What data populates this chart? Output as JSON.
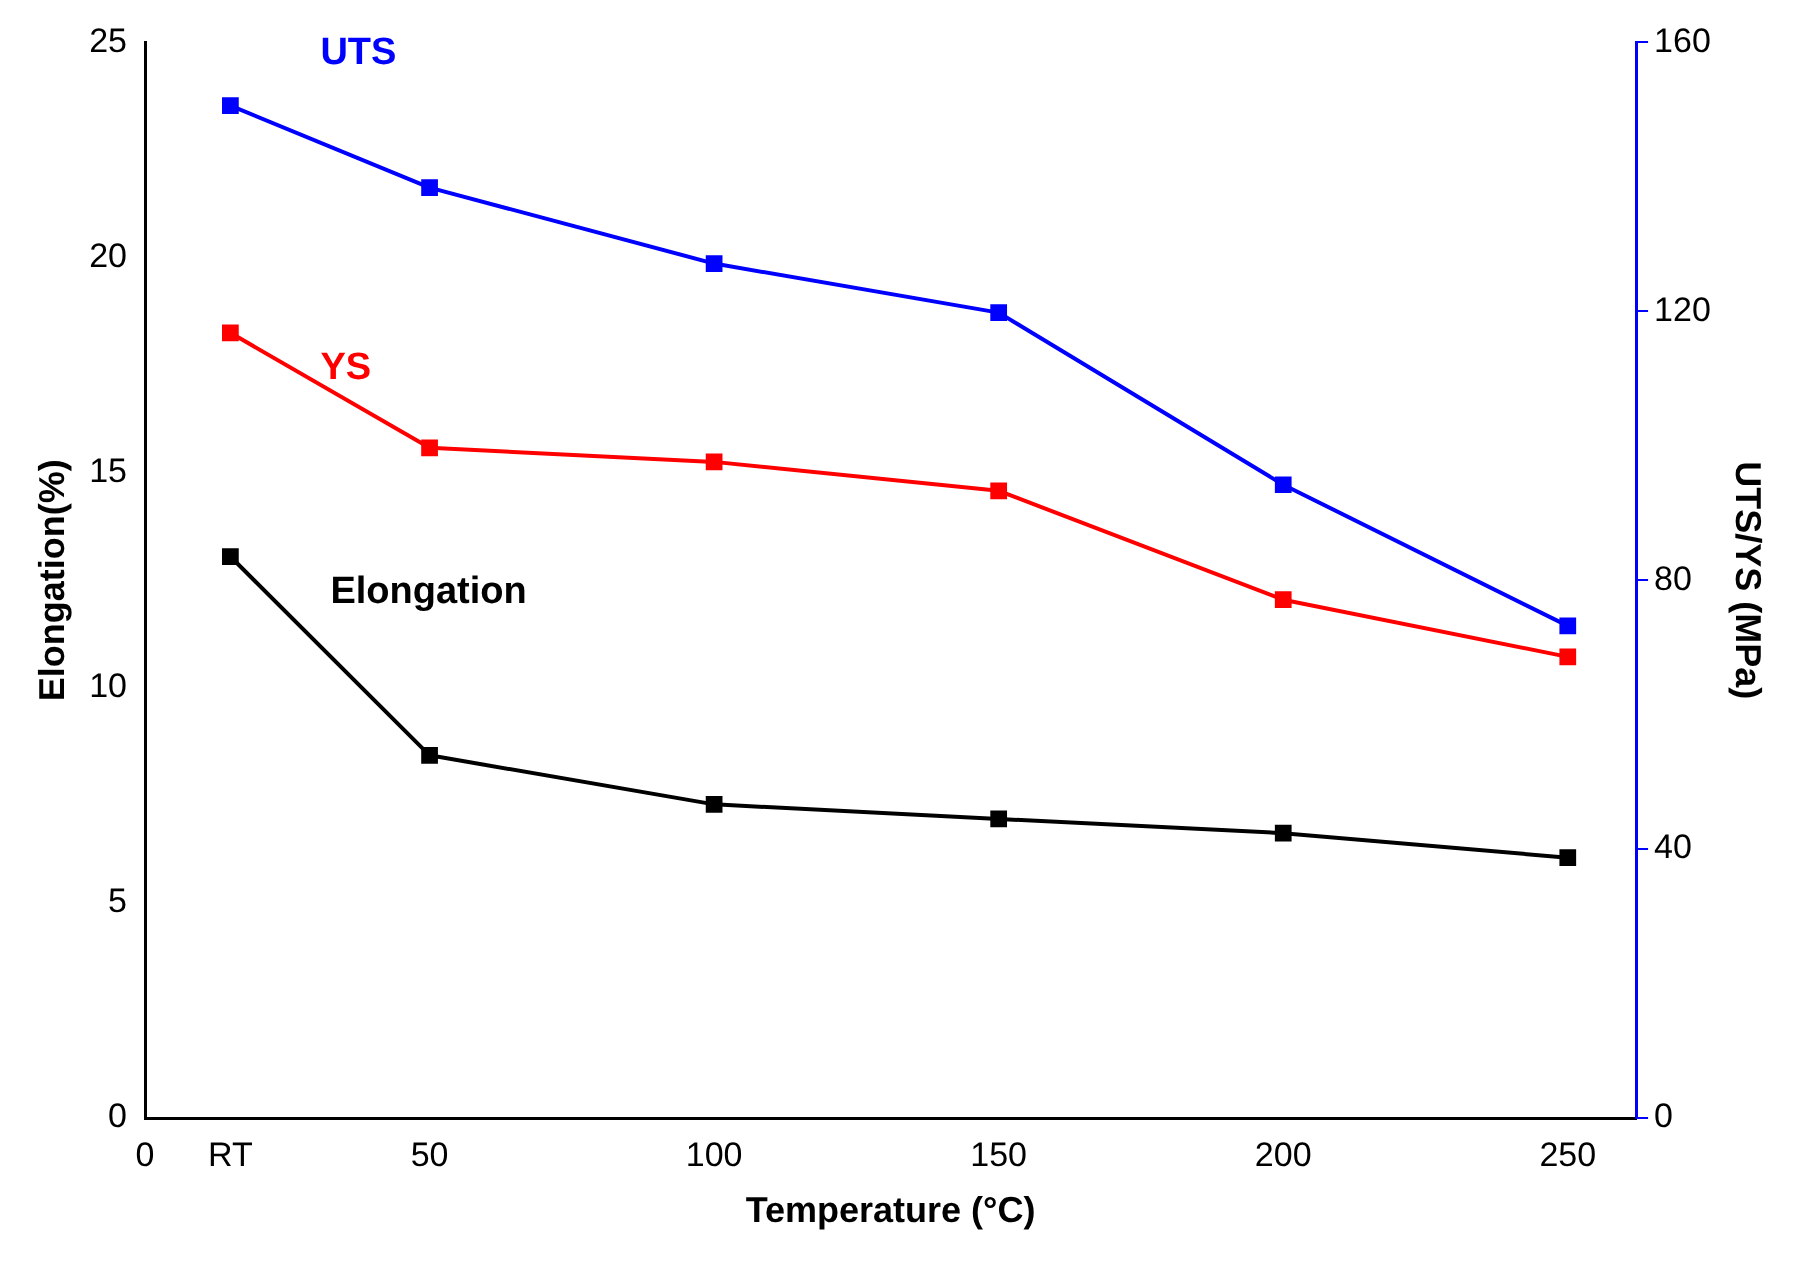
{
  "chart_data": {
    "type": "line",
    "xlabel": "Temperature (°C)",
    "ylabel": "Elongation(%)",
    "y2label": "UTS/YS (MPa)",
    "xlim": [
      0,
      262
    ],
    "xticks": [
      0,
      {
        "value": 15,
        "label": "RT"
      },
      50,
      100,
      150,
      200,
      250
    ],
    "ylim": [
      0,
      25
    ],
    "yticks": [
      0,
      5,
      10,
      15,
      20,
      25
    ],
    "y2lim": [
      0,
      160
    ],
    "y2ticks": [
      0,
      40,
      80,
      120,
      160
    ],
    "grid": false,
    "legend": false,
    "marker": "square",
    "line_style": "solid",
    "series": [
      {
        "name": "UTS",
        "color": "#0000ff",
        "axis": "y2",
        "x": [
          15,
          50,
          100,
          150,
          200,
          250
        ],
        "values": [
          150.6,
          138.4,
          127.1,
          119.8,
          94.2,
          73.2
        ]
      },
      {
        "name": "YS",
        "color": "#ff0000",
        "axis": "y2",
        "x": [
          15,
          50,
          100,
          150,
          200,
          250
        ],
        "values": [
          116.8,
          99.7,
          97.6,
          93.3,
          77.1,
          68.6
        ]
      },
      {
        "name": "Elongation",
        "color": "#000000",
        "axis": "y",
        "x": [
          15,
          50,
          100,
          150,
          200,
          250
        ],
        "values": [
          13.05,
          8.43,
          7.29,
          6.95,
          6.62,
          6.05
        ]
      }
    ]
  }
}
